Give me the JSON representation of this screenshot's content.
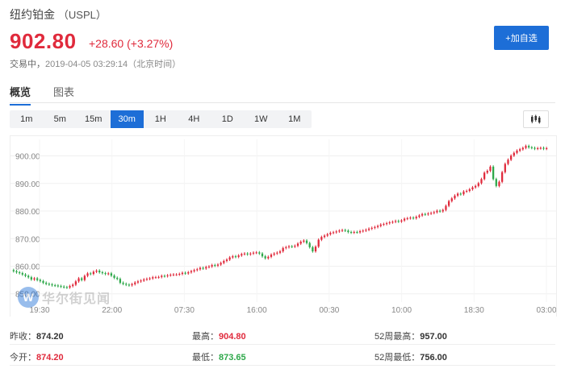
{
  "header": {
    "name": "纽约铂金",
    "code": "（USPL）",
    "price": "902.80",
    "change": "+28.60 (+3.27%)",
    "status": "交易中，",
    "timestamp": "2019-04-05 03:29:14（北京时间）",
    "add_fav_label": "+加自选"
  },
  "tabs": [
    {
      "label": "概览"
    },
    {
      "label": "图表"
    }
  ],
  "periods": [
    {
      "label": "1m"
    },
    {
      "label": "5m"
    },
    {
      "label": "15m"
    },
    {
      "label": "30m"
    },
    {
      "label": "1H"
    },
    {
      "label": "4H"
    },
    {
      "label": "1D"
    },
    {
      "label": "1W"
    },
    {
      "label": "1M"
    }
  ],
  "active_period": "30m",
  "watermark": {
    "logo": "W",
    "text": "华尔街见闻"
  },
  "stats": {
    "prev_close_label": "昨收：",
    "prev_close": "874.20",
    "high_label": "最高：",
    "high": "904.80",
    "high52_label": "52周最高：",
    "high52": "957.00",
    "open_label": "今开：",
    "open": "874.20",
    "low_label": "最低：",
    "low": "873.65",
    "low52_label": "52周最低：",
    "low52": "756.00"
  },
  "colors": {
    "up": "#e02a3c",
    "down": "#2ea84a",
    "accent": "#1d6ed7"
  },
  "chart_data": {
    "type": "candlestick",
    "y_ticks": [
      900,
      890,
      880,
      870,
      860,
      850
    ],
    "y_tick_labels": [
      "900.00",
      "890.00",
      "880.00",
      "870.00",
      "860.00",
      "850.00"
    ],
    "x_tick_labels": [
      "19:30",
      "22:00",
      "07:30",
      "16:00",
      "00:30",
      "10:00",
      "18:30",
      "03:00"
    ],
    "ylim": [
      847,
      906
    ],
    "grid": true,
    "close_series": [
      858.2,
      857.8,
      857.5,
      857,
      856.5,
      856,
      855.2,
      855.6,
      855,
      854.6,
      854,
      853.6,
      853.4,
      853.1,
      853,
      852.8,
      852.6,
      852.4,
      852.3,
      852.8,
      853.3,
      854.5,
      855.6,
      855,
      856.5,
      857.4,
      857.2,
      858,
      858.4,
      857.8,
      857.5,
      857.2,
      857.4,
      856.6,
      855.8,
      855.4,
      854,
      853.6,
      853.3,
      853.1,
      853.5,
      854.1,
      854.5,
      854.8,
      855.2,
      855.4,
      855.6,
      856,
      856,
      856.1,
      856.5,
      856.4,
      856.7,
      856.9,
      857,
      857,
      857.2,
      857.6,
      857.4,
      857.8,
      858.2,
      858.6,
      858.9,
      859.4,
      859.2,
      859.7,
      859.9,
      860.4,
      860.2,
      860.6,
      861.2,
      861.9,
      862.4,
      863.2,
      863.6,
      863.4,
      863.9,
      864.4,
      864.6,
      864.3,
      864.6,
      864.9,
      865,
      864.6,
      863.6,
      862.9,
      863.4,
      864.2,
      864.6,
      864.9,
      865.4,
      866.6,
      866.9,
      867.2,
      867.1,
      867.4,
      868.2,
      868.9,
      869.3,
      868.4,
      866.9,
      865.4,
      867.1,
      869.6,
      870.6,
      871.1,
      871.6,
      872.1,
      872.3,
      872.6,
      872.9,
      873.1,
      872.9,
      872.4,
      872.2,
      872.4,
      872.3,
      872.7,
      872.9,
      873.2,
      873.6,
      873.9,
      874.2,
      874.6,
      875.1,
      875.3,
      875.6,
      875.9,
      876.1,
      876.4,
      876.2,
      876.6,
      877.2,
      877.4,
      877.6,
      877.4,
      877.9,
      878.4,
      878.9,
      878.8,
      879.1,
      879.3,
      879.6,
      880.1,
      879.9,
      880.4,
      881.9,
      883.6,
      884.6,
      885.6,
      886.3,
      886.1,
      887.1,
      887.3,
      887.9,
      888.6,
      889.1,
      890.1,
      891.6,
      893.9,
      894.6,
      896.1,
      891.6,
      889.1,
      890.6,
      894.1,
      897.1,
      898.6,
      900.1,
      901.1,
      901.9,
      902.4,
      902.9,
      903.6,
      903.1,
      902.9,
      902.6,
      902.8,
      902.9,
      902.6,
      902.8
    ]
  }
}
